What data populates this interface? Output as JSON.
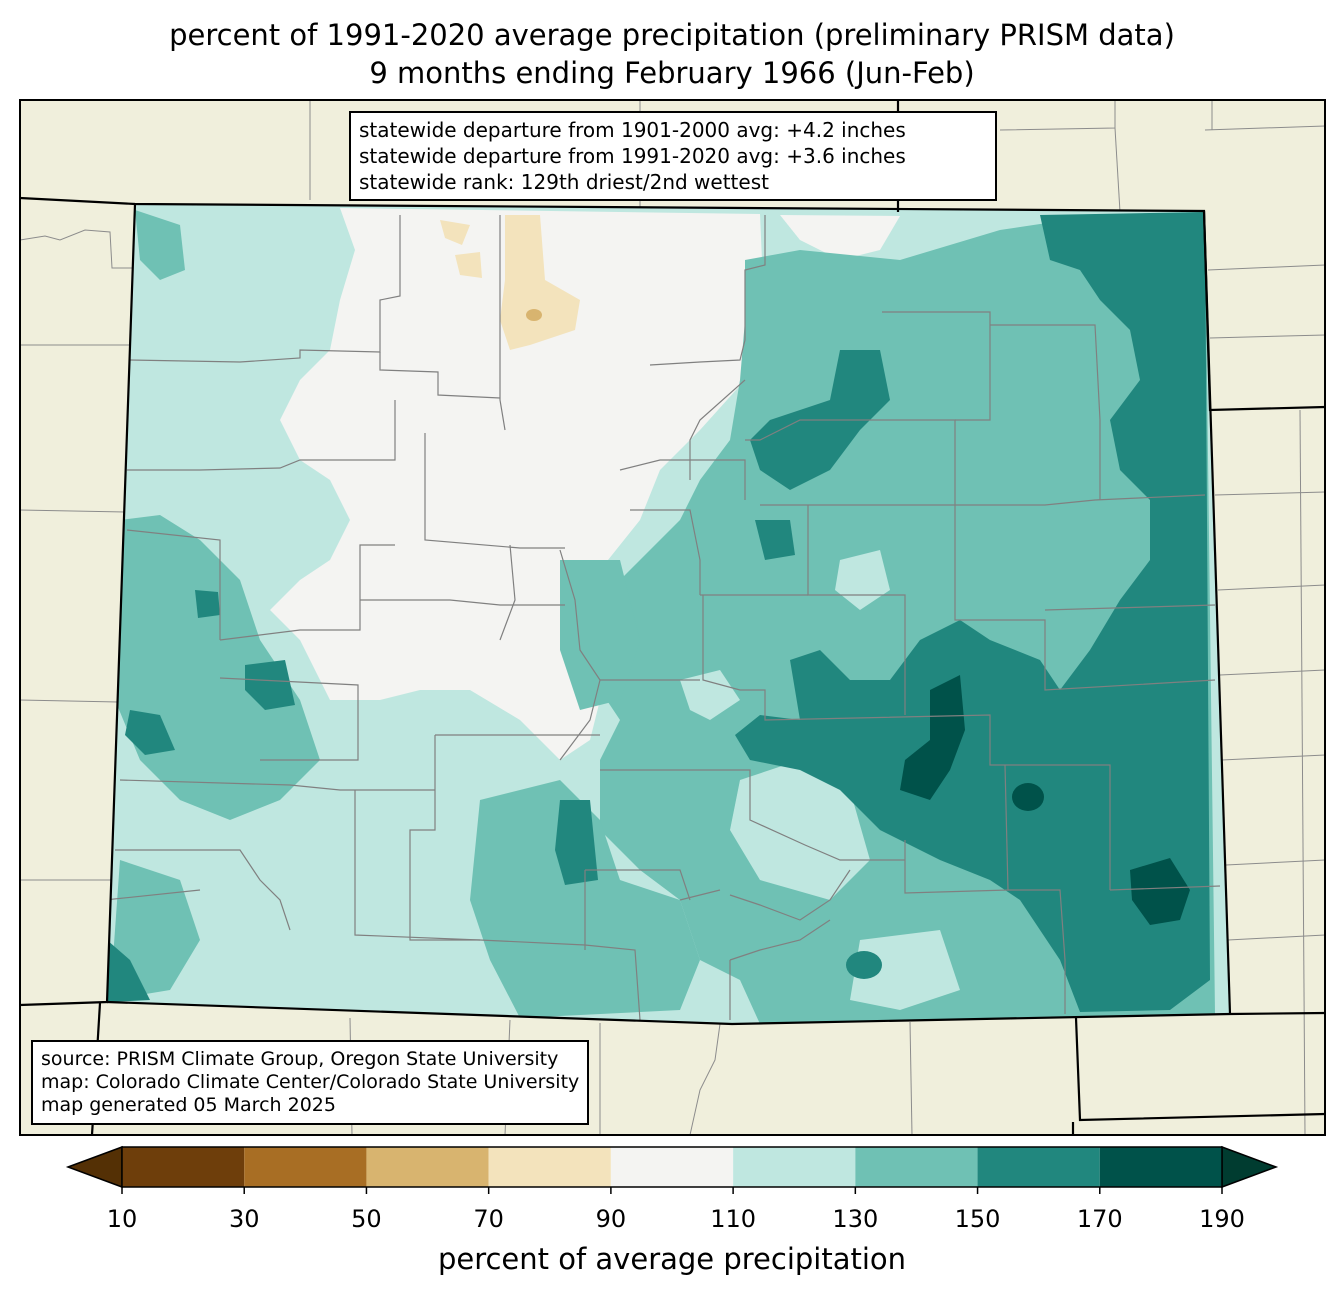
{
  "header": {
    "title_line1": "percent of 1991-2020 average precipitation (preliminary PRISM data)",
    "title_line2": "9 months ending February 1966 (Jun-Feb)"
  },
  "stats": {
    "line1": "statewide departure from 1901-2000 avg: +4.2 inches",
    "line2": "statewide departure from 1991-2020 avg: +3.6 inches",
    "line3": "statewide rank: 129th driest/2nd wettest"
  },
  "credits": {
    "line1": "source: PRISM Climate Group, Oregon State University",
    "line2": "map: Colorado Climate Center/Colorado State University",
    "line3": "map generated 05 March 2025"
  },
  "colorbar": {
    "label": "percent of average precipitation",
    "ticks": [
      "10",
      "30",
      "50",
      "70",
      "90",
      "110",
      "130",
      "150",
      "170",
      "190"
    ],
    "bins": [
      {
        "range": [
          10,
          30
        ],
        "color": "#6e3e0b"
      },
      {
        "range": [
          30,
          50
        ],
        "color": "#a86e24"
      },
      {
        "range": [
          50,
          70
        ],
        "color": "#d8b46f"
      },
      {
        "range": [
          70,
          90
        ],
        "color": "#f3e3bc"
      },
      {
        "range": [
          90,
          110
        ],
        "color": "#f4f4f2"
      },
      {
        "range": [
          110,
          130
        ],
        "color": "#bfe7e0"
      },
      {
        "range": [
          130,
          150
        ],
        "color": "#6fc1b4"
      },
      {
        "range": [
          150,
          170
        ],
        "color": "#21877e"
      },
      {
        "range": [
          170,
          190
        ],
        "color": "#00524a"
      }
    ],
    "under_color": "#543005",
    "over_color": "#003c30"
  },
  "colors": {
    "background_land": "#f0efdc",
    "state_border": "#000000",
    "county_lines": "#808080"
  }
}
